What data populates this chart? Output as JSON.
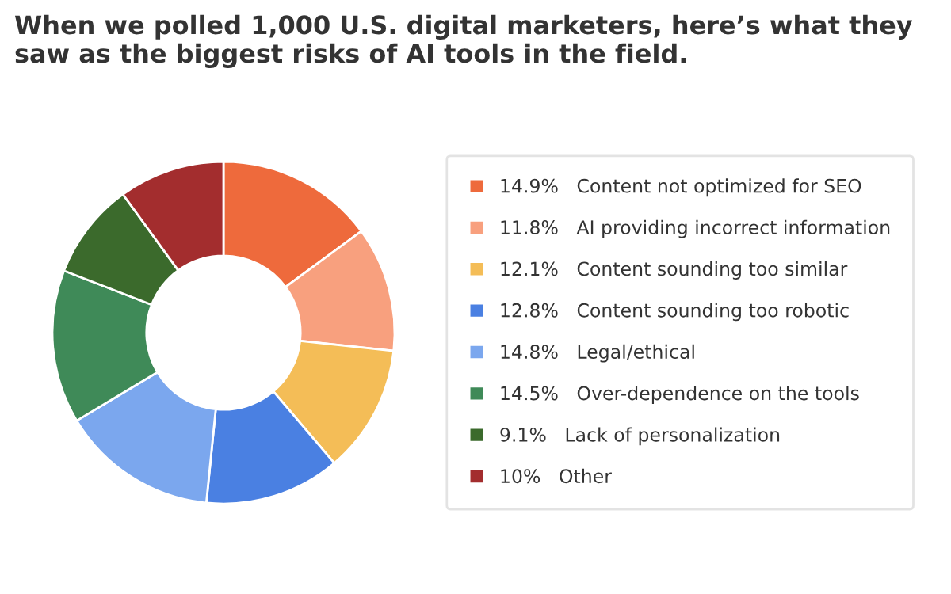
{
  "chart_data": {
    "type": "donut",
    "title": "When we polled 1,000 U.S. digital marketers, here’s what they saw as the biggest risks of AI tools in the field.",
    "categories": [
      "Content not optimized for SEO",
      "AI providing incorrect information",
      "Content sounding too similar",
      "Content sounding too robotic",
      "Legal/ethical",
      "Over-dependence on the tools",
      "Lack of personalization",
      "Other"
    ],
    "values": [
      14.9,
      11.8,
      12.1,
      12.8,
      14.8,
      14.5,
      9.1,
      10
    ],
    "value_labels": [
      "14.9%",
      "11.8%",
      "12.1%",
      "12.8%",
      "14.8%",
      "14.5%",
      "9.1%",
      "10%"
    ],
    "colors": [
      "#ee6a3c",
      "#f8a07e",
      "#f4bd57",
      "#4a80e2",
      "#7ba7ee",
      "#3f8a58",
      "#3b6a2c",
      "#a32d2e"
    ],
    "legend": "right"
  }
}
